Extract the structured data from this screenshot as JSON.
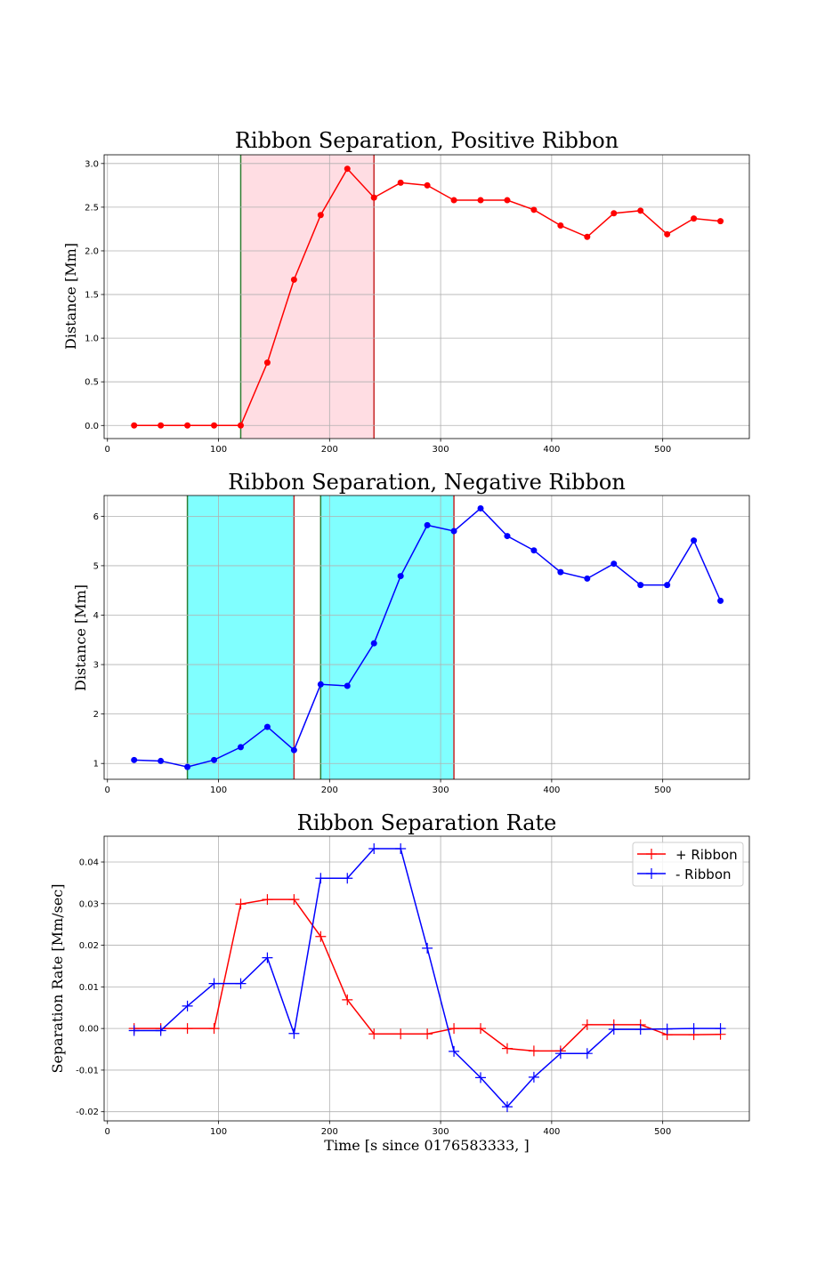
{
  "figure": {
    "background": "#ffffff",
    "grid_color": "#b0b0b0"
  },
  "chart_data": [
    {
      "type": "line",
      "title": "Ribbon Separation, Positive Ribbon",
      "xlabel": "",
      "ylabel": "Distance [Mm]",
      "xlim": [
        -3,
        578
      ],
      "ylim": [
        -0.15,
        3.1
      ],
      "xticks": [
        0,
        100,
        200,
        300,
        400,
        500
      ],
      "yticks": [
        0.0,
        0.5,
        1.0,
        1.5,
        2.0,
        2.5,
        3.0
      ],
      "ytick_labels": [
        "0.0",
        "0.5",
        "1.0",
        "1.5",
        "2.0",
        "2.5",
        "3.0"
      ],
      "grid": true,
      "spans": [
        {
          "x0": 120,
          "x1": 240,
          "fill": "#ffdde3",
          "start_color": "#2e7d32",
          "end_color": "#c62828"
        }
      ],
      "series": [
        {
          "color": "#ff0000",
          "marker": "circle",
          "x": [
            24,
            48,
            72,
            96,
            120,
            144,
            168,
            192,
            216,
            240,
            264,
            288,
            312,
            336,
            360,
            384,
            408,
            432,
            456,
            480,
            504,
            528,
            552
          ],
          "y": [
            0.0,
            0.0,
            0.0,
            0.0,
            0.0,
            0.72,
            1.67,
            2.41,
            2.94,
            2.61,
            2.78,
            2.75,
            2.58,
            2.58,
            2.58,
            2.47,
            2.29,
            2.16,
            2.43,
            2.46,
            2.19,
            2.37,
            2.34
          ]
        }
      ]
    },
    {
      "type": "line",
      "title": "Ribbon Separation, Negative Ribbon",
      "xlabel": "",
      "ylabel": "Distance [Mm]",
      "xlim": [
        -3,
        578
      ],
      "ylim": [
        0.68,
        6.42
      ],
      "xticks": [
        0,
        100,
        200,
        300,
        400,
        500
      ],
      "yticks": [
        1,
        2,
        3,
        4,
        5,
        6
      ],
      "ytick_labels": [
        "1",
        "2",
        "3",
        "4",
        "5",
        "6"
      ],
      "grid": true,
      "spans": [
        {
          "x0": 72,
          "x1": 168,
          "fill": "#80ffff",
          "start_color": "#2e7d32",
          "end_color": "#c62828"
        },
        {
          "x0": 192,
          "x1": 312,
          "fill": "#80ffff",
          "start_color": "#2e7d32",
          "end_color": "#c62828"
        }
      ],
      "series": [
        {
          "color": "#0000ff",
          "marker": "circle",
          "x": [
            24,
            48,
            72,
            96,
            120,
            144,
            168,
            192,
            216,
            240,
            264,
            288,
            312,
            336,
            360,
            384,
            408,
            432,
            456,
            480,
            504,
            528,
            552
          ],
          "y": [
            1.07,
            1.05,
            0.93,
            1.07,
            1.33,
            1.74,
            1.27,
            2.6,
            2.57,
            3.43,
            4.79,
            5.82,
            5.7,
            6.16,
            5.6,
            5.31,
            4.87,
            4.74,
            5.04,
            4.61,
            4.61,
            5.51,
            4.29
          ]
        }
      ]
    },
    {
      "type": "line",
      "title": "Ribbon Separation Rate",
      "xlabel": "Time [s since 0176583333, ]",
      "ylabel": "Separation Rate [Mm/sec]",
      "xlim": [
        -3,
        578
      ],
      "ylim": [
        -0.0222,
        0.0462
      ],
      "xticks": [
        0,
        100,
        200,
        300,
        400,
        500
      ],
      "yticks": [
        -0.02,
        -0.01,
        0.0,
        0.01,
        0.02,
        0.03,
        0.04
      ],
      "ytick_labels": [
        "-0.02",
        "-0.01",
        "0.00",
        "0.01",
        "0.02",
        "0.03",
        "0.04"
      ],
      "grid": true,
      "legend": "top-right",
      "series": [
        {
          "name": "+ Ribbon",
          "color": "#ff0000",
          "marker": "plus",
          "x": [
            24,
            48,
            72,
            96,
            120,
            144,
            168,
            192,
            216,
            240,
            264,
            288,
            312,
            336,
            360,
            384,
            408,
            432,
            456,
            480,
            504,
            528,
            552
          ],
          "y": [
            0.0,
            0.0,
            0.0,
            0.0,
            0.0299,
            0.031,
            0.031,
            0.0221,
            0.0069,
            -0.0013,
            -0.0013,
            -0.0013,
            0.0,
            0.0,
            -0.0048,
            -0.0054,
            -0.0054,
            0.0009,
            0.0009,
            0.0009,
            -0.0015,
            -0.0015,
            -0.0014
          ]
        },
        {
          "name": "- Ribbon",
          "color": "#0000ff",
          "marker": "plus",
          "x": [
            24,
            48,
            72,
            96,
            120,
            144,
            168,
            192,
            216,
            240,
            264,
            288,
            312,
            336,
            360,
            384,
            408,
            432,
            456,
            480,
            504,
            528,
            552
          ],
          "y": [
            -0.0005,
            -0.0005,
            0.0054,
            0.0108,
            0.0108,
            0.017,
            -0.0012,
            0.0361,
            0.0361,
            0.0432,
            0.0432,
            0.0193,
            -0.0055,
            -0.0118,
            -0.0188,
            -0.0117,
            -0.006,
            -0.006,
            -0.0002,
            -0.0002,
            -0.0001,
            0.0,
            0.0
          ]
        }
      ]
    }
  ]
}
